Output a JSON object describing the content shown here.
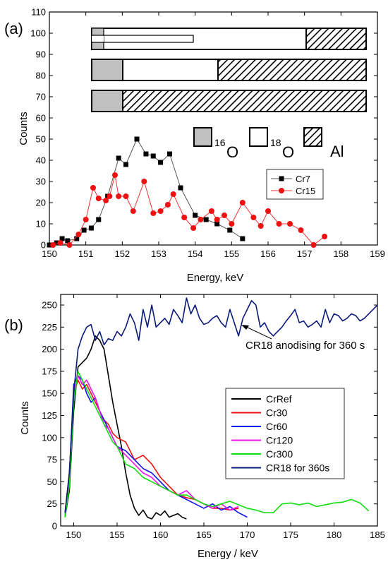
{
  "chart_data": [
    {
      "panel_label": "(a)",
      "type": "scatter",
      "xlabel": "Energy, keV",
      "ylabel": "Counts",
      "xlim": [
        150,
        159
      ],
      "ylim": [
        0,
        110
      ],
      "x_ticks": [
        150,
        151,
        152,
        153,
        154,
        155,
        156,
        157,
        158,
        159
      ],
      "y_ticks": [
        0,
        10,
        20,
        30,
        40,
        50,
        60,
        70,
        80,
        90,
        100,
        110
      ],
      "grid": false,
      "legend": "center-right",
      "series": [
        {
          "name": "Cr7",
          "marker": "square",
          "marker_color": "#000000",
          "line_color": "#555555",
          "x": [
            150.0,
            150.2,
            150.35,
            150.5,
            150.75,
            150.95,
            151.15,
            151.35,
            151.6,
            151.9,
            152.1,
            152.4,
            152.65,
            152.85,
            153.05,
            153.3,
            153.6,
            154.0,
            154.3,
            154.6,
            154.95,
            155.3
          ],
          "y": [
            0,
            1,
            3,
            2,
            3,
            7,
            8,
            12,
            23,
            41,
            38,
            50,
            43,
            42,
            39,
            43,
            27,
            14,
            12,
            10,
            7,
            3
          ]
        },
        {
          "name": "Cr15",
          "marker": "circle",
          "marker_color": "#ee1111",
          "line_color": "#ee3333",
          "x": [
            150.1,
            150.3,
            150.55,
            150.8,
            151.0,
            151.2,
            151.35,
            151.55,
            151.65,
            151.8,
            151.9,
            152.1,
            152.3,
            152.6,
            152.85,
            153.05,
            153.25,
            153.4,
            153.7,
            153.95,
            154.15,
            154.45,
            154.6,
            154.8,
            155.0,
            155.3,
            155.6,
            155.8,
            156.0,
            156.3,
            156.6,
            156.9,
            157.25,
            157.55
          ],
          "y": [
            0,
            1,
            0,
            5,
            12,
            27,
            22,
            21,
            23,
            33,
            23,
            23,
            16,
            30,
            15,
            16,
            19,
            24,
            13,
            8,
            12,
            16,
            12,
            14,
            10,
            20,
            13,
            9,
            16,
            10,
            10,
            7,
            0,
            4
          ]
        }
      ],
      "inset_legend": {
        "items": [
          {
            "sup": "16",
            "label": "O",
            "fill": "gray"
          },
          {
            "sup": "18",
            "label": "O",
            "fill": "white"
          },
          {
            "sup": "",
            "label": "Al",
            "fill": "hatched"
          }
        ]
      }
    },
    {
      "panel_label": "(b)",
      "type": "line",
      "xlabel": "Energy / keV",
      "ylabel": "Counts",
      "xlim": [
        148.5,
        185
      ],
      "ylim": [
        0,
        262
      ],
      "x_ticks": [
        150,
        155,
        160,
        165,
        170,
        175,
        180,
        185
      ],
      "y_ticks": [
        0,
        25,
        50,
        75,
        100,
        125,
        150,
        175,
        200,
        225,
        250
      ],
      "grid": false,
      "legend": "center-right",
      "annotation": "CR18 anodising for 360 s",
      "series": [
        {
          "name": "CrRef",
          "color": "#000000",
          "x": [
            149.0,
            149.5,
            150.0,
            150.5,
            151.0,
            151.5,
            152.0,
            152.5,
            153.0,
            153.5,
            154.0,
            154.5,
            155.0,
            155.5,
            156.0,
            156.5,
            157.0,
            157.5,
            158.0,
            158.5,
            159.0,
            159.5,
            160.0,
            160.5,
            161.0,
            161.5,
            162.0,
            162.5,
            163.0
          ],
          "y": [
            10,
            40,
            130,
            180,
            185,
            190,
            200,
            215,
            210,
            200,
            170,
            140,
            115,
            90,
            60,
            35,
            20,
            12,
            18,
            10,
            8,
            15,
            12,
            17,
            10,
            12,
            14,
            10,
            8
          ]
        },
        {
          "name": "Cr30",
          "color": "#ee1111",
          "x": [
            149.0,
            149.5,
            150.0,
            150.5,
            151.0,
            151.5,
            152.0,
            152.5,
            153.0,
            153.5,
            154.0,
            154.5,
            155.0,
            156.0,
            157.0,
            158.0,
            159.0,
            160.0,
            161.0,
            162.0,
            163.0,
            164.0,
            165.0,
            166.0,
            167.0,
            168.0,
            169.0
          ],
          "y": [
            15,
            60,
            150,
            165,
            155,
            160,
            150,
            140,
            130,
            120,
            115,
            105,
            100,
            95,
            75,
            80,
            70,
            55,
            45,
            35,
            32,
            30,
            25,
            20,
            20,
            18,
            20
          ]
        },
        {
          "name": "Cr60",
          "color": "#1111ee",
          "x": [
            149.0,
            149.5,
            150.0,
            150.5,
            151.0,
            151.5,
            152.0,
            152.5,
            153.0,
            153.5,
            154.0,
            154.5,
            155.0,
            156.0,
            157.0,
            158.0,
            159.0,
            160.0,
            161.0,
            162.0,
            163.0,
            164.0,
            165.0,
            166.0,
            167.0,
            168.0,
            169.0,
            170.0
          ],
          "y": [
            10,
            55,
            160,
            170,
            165,
            150,
            140,
            145,
            130,
            120,
            110,
            100,
            90,
            85,
            75,
            65,
            60,
            50,
            40,
            35,
            30,
            25,
            20,
            25,
            18,
            22,
            15,
            10
          ]
        },
        {
          "name": "Cr120",
          "color": "#ee11ee",
          "x": [
            149.0,
            149.5,
            150.0,
            150.5,
            151.0,
            151.5,
            152.0,
            152.5,
            153.0,
            153.5,
            154.0,
            154.5,
            155.0,
            156.0,
            157.0,
            158.0,
            159.0,
            160.0,
            161.0,
            162.0,
            163.0,
            164.0,
            165.0,
            166.0,
            167.0,
            168.0,
            169.0
          ],
          "y": [
            12,
            50,
            150,
            170,
            160,
            165,
            155,
            145,
            130,
            115,
            110,
            100,
            90,
            80,
            70,
            60,
            55,
            45,
            40,
            35,
            40,
            30,
            25,
            20,
            25,
            18,
            22
          ]
        },
        {
          "name": "Cr300",
          "color": "#11dd11",
          "x": [
            149.0,
            149.5,
            150.0,
            150.5,
            151.0,
            151.5,
            152.0,
            152.5,
            153.0,
            153.5,
            154.0,
            154.5,
            155.0,
            156.0,
            157.0,
            158.0,
            159.0,
            160.0,
            161.0,
            162.0,
            163.0,
            164.0,
            165.0,
            166.0,
            167.0,
            168.0,
            169.0,
            170.0,
            171.0,
            172.0,
            173.0,
            174.0,
            175.0,
            176.0,
            177.0,
            178.0,
            179.0,
            180.0,
            181.0,
            182.0,
            183.0,
            184.0
          ],
          "y": [
            10,
            45,
            140,
            175,
            165,
            155,
            145,
            135,
            125,
            115,
            105,
            95,
            90,
            70,
            65,
            55,
            50,
            45,
            40,
            35,
            35,
            30,
            25,
            22,
            25,
            28,
            24,
            20,
            18,
            15,
            15,
            25,
            26,
            24,
            26,
            22,
            24,
            26,
            27,
            30,
            26,
            17
          ]
        },
        {
          "name": "CR18 for 360s",
          "color": "#0a1a7a",
          "x": [
            149.0,
            149.5,
            150.0,
            150.5,
            151.0,
            151.5,
            152.0,
            152.5,
            153.0,
            153.5,
            154.0,
            154.5,
            155.0,
            155.5,
            156.0,
            156.5,
            157.0,
            157.5,
            158.0,
            158.5,
            159.0,
            159.5,
            160.0,
            160.5,
            161.0,
            161.5,
            162.0,
            162.5,
            163.0,
            163.5,
            164.0,
            164.5,
            165.0,
            165.5,
            166.0,
            166.5,
            167.0,
            167.5,
            168.0,
            168.5,
            169.0,
            169.5,
            170.0,
            170.5,
            171.0,
            171.5,
            172.0,
            172.5,
            173.0,
            173.5,
            174.0,
            174.5,
            175.0,
            175.5,
            176.0,
            176.5,
            177.0,
            177.5,
            178.0,
            178.5,
            179.0,
            179.5,
            180.0,
            180.5,
            181.0,
            181.5,
            182.0,
            182.5,
            183.0,
            183.5,
            184.0,
            184.5,
            185.0
          ],
          "y": [
            15,
            60,
            150,
            200,
            215,
            225,
            228,
            210,
            220,
            205,
            212,
            210,
            220,
            215,
            225,
            240,
            230,
            210,
            245,
            225,
            250,
            225,
            230,
            235,
            228,
            245,
            238,
            230,
            258,
            240,
            250,
            235,
            228,
            230,
            235,
            238,
            230,
            225,
            245,
            230,
            215,
            235,
            245,
            255,
            250,
            225,
            230,
            220,
            215,
            220,
            225,
            232,
            238,
            245,
            230,
            232,
            225,
            228,
            232,
            225,
            245,
            230,
            240,
            238,
            232,
            235,
            240,
            238,
            232,
            235,
            240,
            245,
            250
          ]
        }
      ]
    }
  ]
}
